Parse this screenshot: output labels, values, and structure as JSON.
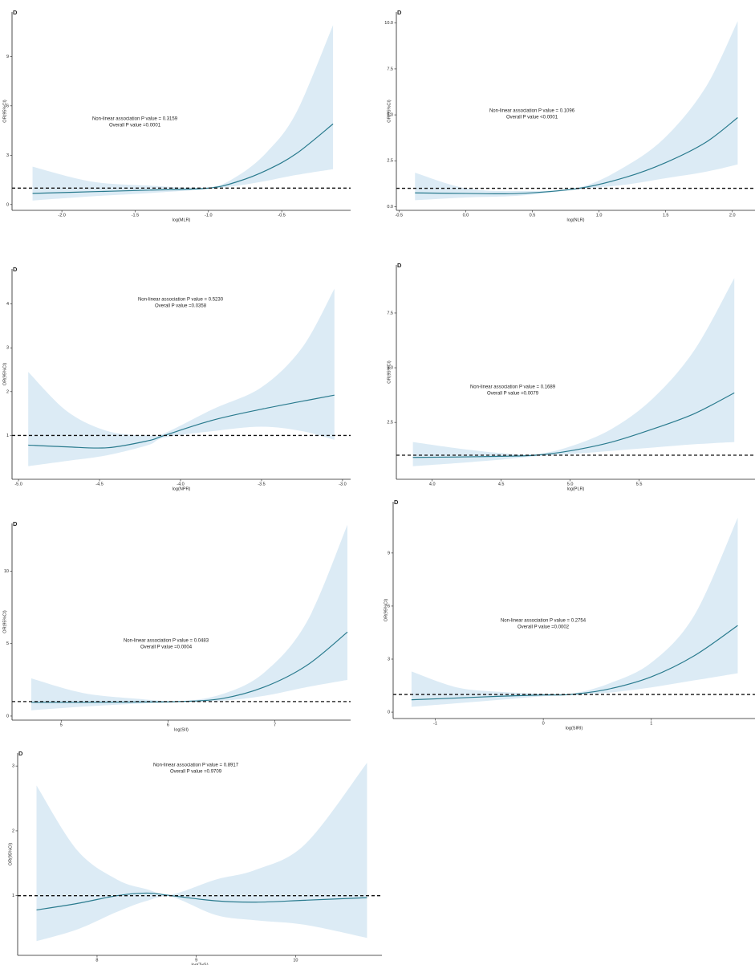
{
  "chart_data": [
    {
      "type": "line",
      "label": "D",
      "xlabel": "log(MLR)",
      "ylabel": "OR(95%CI)",
      "annotations": [
        "Non-linear association P value = 0.3159",
        "Overall P value =0.0001"
      ],
      "x": [
        -2.2,
        -1.8,
        -1.4,
        -1.0,
        -0.8,
        -0.6,
        -0.4,
        -0.15
      ],
      "values": [
        0.68,
        0.78,
        0.88,
        1.0,
        1.4,
        2.1,
        3.1,
        4.9
      ],
      "lower": [
        0.25,
        0.5,
        0.7,
        0.95,
        1.15,
        1.45,
        1.8,
        2.15
      ],
      "upper": [
        2.3,
        1.4,
        1.15,
        1.05,
        1.75,
        3.2,
        5.6,
        10.9
      ],
      "xlim": [
        -2.34,
        -0.03
      ],
      "ylim": [
        -0.35,
        11.7
      ],
      "xticks": [
        {
          "value": -2.0,
          "label": "-2.0"
        },
        -1.5,
        {
          "value": -1.0,
          "label": "-1.0"
        },
        -0.5
      ],
      "yticks": [
        0,
        3,
        6,
        9
      ],
      "reference_line": 1,
      "color": "#2a7b8e",
      "band_color": "#dcebf5"
    },
    {
      "type": "line",
      "label": "D",
      "xlabel": "log(NLR)",
      "ylabel": "OR(95%CI)",
      "annotations": [
        "Non-linear association P value = 0.1096",
        "Overall P value <0.0001"
      ],
      "x": [
        -0.38,
        0,
        0.4,
        0.85,
        1.2,
        1.5,
        1.8,
        2.04
      ],
      "values": [
        0.75,
        0.72,
        0.72,
        1.0,
        1.6,
        2.4,
        3.5,
        4.85
      ],
      "lower": [
        0.35,
        0.5,
        0.6,
        0.95,
        1.2,
        1.55,
        1.9,
        2.3
      ],
      "upper": [
        1.85,
        1.0,
        0.85,
        1.05,
        2.2,
        3.8,
        6.5,
        10.1
      ],
      "xlim": [
        -0.52,
        2.17
      ],
      "ylim": [
        -0.2,
        10.6
      ],
      "xticks": [
        -0.5,
        {
          "value": 0,
          "label": "0.0"
        },
        0.5,
        {
          "value": 1,
          "label": "1.0"
        },
        1.5,
        {
          "value": 2,
          "label": "2.0"
        }
      ],
      "yticks": [
        {
          "value": 0,
          "label": "0.0"
        },
        2.5,
        {
          "value": 5,
          "label": "5.0"
        },
        7.5,
        {
          "value": 10,
          "label": "10.0"
        }
      ],
      "reference_line": 1,
      "color": "#2a7b8e",
      "band_color": "#dcebf5"
    },
    {
      "type": "line",
      "label": "D",
      "xlabel": "log(NPR)",
      "ylabel": "OR(95%CI)",
      "annotations": [
        "Non-linear association P value = 0.5230",
        "Overall P value =0.0358"
      ],
      "x": [
        -4.94,
        -4.7,
        -4.45,
        -4.2,
        -4.1,
        -3.8,
        -3.5,
        -3.25,
        -3.05
      ],
      "values": [
        0.78,
        0.74,
        0.72,
        0.88,
        1.0,
        1.35,
        1.6,
        1.78,
        1.92
      ],
      "lower": [
        0.3,
        0.42,
        0.55,
        0.78,
        0.95,
        1.1,
        1.2,
        1.1,
        0.9
      ],
      "upper": [
        2.45,
        1.55,
        1.1,
        1.0,
        1.05,
        1.6,
        2.1,
        3.0,
        4.35
      ],
      "xlim": [
        -5.04,
        -2.95
      ],
      "ylim": [
        0,
        4.8
      ],
      "xticks": [
        {
          "value": -5,
          "label": "-5.0"
        },
        -4.5,
        {
          "value": -4,
          "label": "-4.0"
        },
        -3.5,
        {
          "value": -3,
          "label": "-3.0"
        }
      ],
      "yticks": [
        1,
        2,
        3,
        4
      ],
      "reference_line": 1,
      "color": "#2a7b8e",
      "band_color": "#dcebf5"
    },
    {
      "type": "line",
      "label": "D",
      "xlabel": "log(PLR)",
      "ylabel": "OR(95%CI)",
      "annotations": [
        "Non-linear association P value = 0.1689",
        "Overall P value =0.0079"
      ],
      "x": [
        3.86,
        4.2,
        4.5,
        4.75,
        5.0,
        5.3,
        5.6,
        5.9,
        6.19
      ],
      "values": [
        0.9,
        0.92,
        0.95,
        1.0,
        1.2,
        1.6,
        2.2,
        2.9,
        3.85
      ],
      "lower": [
        0.5,
        0.65,
        0.8,
        0.95,
        1.05,
        1.2,
        1.35,
        1.5,
        1.6
      ],
      "upper": [
        1.6,
        1.3,
        1.1,
        1.05,
        1.4,
        2.2,
        3.6,
        5.8,
        9.1
      ],
      "xlim": [
        3.74,
        6.34
      ],
      "ylim": [
        -0.1,
        9.7
      ],
      "xticks": [
        {
          "value": 4,
          "label": "4.0"
        },
        4.5,
        {
          "value": 5,
          "label": "5.0"
        },
        5.5
      ],
      "yticks": [
        2.5,
        {
          "value": 5,
          "label": "5.0"
        },
        7.5
      ],
      "reference_line": 1,
      "color": "#2a7b8e",
      "band_color": "#dcebf5"
    },
    {
      "type": "line",
      "label": "D",
      "xlabel": "log(SII)",
      "ylabel": "OR(95%CI)",
      "annotations": [
        "Non-linear association P value = 0.0483",
        "Overall P value =0.0004"
      ],
      "x": [
        4.72,
        5.2,
        5.7,
        6.1,
        6.5,
        6.9,
        7.3,
        7.68
      ],
      "values": [
        0.95,
        0.95,
        0.97,
        1.0,
        1.2,
        2.0,
        3.5,
        5.8
      ],
      "lower": [
        0.4,
        0.65,
        0.85,
        0.97,
        1.05,
        1.4,
        2.0,
        2.5
      ],
      "upper": [
        2.6,
        1.6,
        1.2,
        1.03,
        1.5,
        3.0,
        6.5,
        13.2
      ],
      "xlim": [
        4.54,
        7.71
      ],
      "ylim": [
        -0.28,
        13.3
      ],
      "xticks": [
        5,
        6,
        7
      ],
      "yticks": [
        0,
        5,
        10
      ],
      "reference_line": 1,
      "color": "#2a7b8e",
      "band_color": "#dcebf5"
    },
    {
      "type": "line",
      "label": "D",
      "xlabel": "log(SIRI)",
      "ylabel": "OR(95%CI)",
      "annotations": [
        "Non-linear association P value = 0.2754",
        "Overall P value =0.0002"
      ],
      "x": [
        -1.22,
        -0.8,
        -0.4,
        0,
        0.25,
        0.6,
        1.0,
        1.4,
        1.8
      ],
      "values": [
        0.7,
        0.8,
        0.9,
        0.97,
        1.0,
        1.3,
        2.0,
        3.2,
        4.9
      ],
      "lower": [
        0.3,
        0.5,
        0.7,
        0.9,
        0.97,
        1.1,
        1.4,
        1.8,
        2.2
      ],
      "upper": [
        2.3,
        1.4,
        1.15,
        1.05,
        1.03,
        1.6,
        2.8,
        5.5,
        11.0
      ],
      "xlim": [
        -1.39,
        1.96
      ],
      "ylim": [
        -0.36,
        11.9
      ],
      "xticks": [
        -1,
        0,
        1
      ],
      "yticks": [
        0,
        3,
        6,
        9
      ],
      "reference_line": 1,
      "color": "#2a7b8e",
      "band_color": "#dcebf5"
    },
    {
      "type": "line",
      "label": "D",
      "xlabel": "log(TyG)",
      "ylabel": "OR(95%CI)",
      "annotations": [
        "Non-linear association P value = 0.8917",
        "Overall P value =0.9709"
      ],
      "x": [
        7.39,
        7.8,
        8.2,
        8.5,
        8.75,
        9.2,
        9.6,
        10.1,
        10.72
      ],
      "values": [
        0.78,
        0.88,
        1.0,
        1.04,
        1.0,
        0.92,
        0.9,
        0.93,
        0.97
      ],
      "lower": [
        0.3,
        0.48,
        0.75,
        0.92,
        0.98,
        0.7,
        0.62,
        0.55,
        0.35
      ],
      "upper": [
        2.7,
        1.7,
        1.25,
        1.1,
        1.02,
        1.25,
        1.4,
        1.8,
        3.05
      ],
      "xlim": [
        7.2,
        10.87
      ],
      "ylim": [
        0.08,
        3.2
      ],
      "xticks": [
        8,
        9,
        10
      ],
      "yticks": [
        1,
        2,
        3
      ],
      "reference_line": 1,
      "color": "#2a7b8e",
      "band_color": "#dcebf5"
    }
  ]
}
